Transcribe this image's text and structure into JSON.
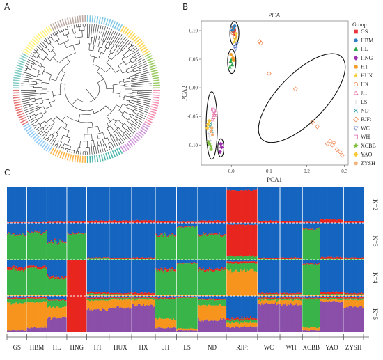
{
  "panels": {
    "a": "A",
    "b": "B",
    "c": "C"
  },
  "chart_data": [
    {
      "type": "tree",
      "panel": "A",
      "layout": "circular",
      "branch_color": "#222222",
      "tip_colors": [
        "#7ec8e3",
        "#ffd54f",
        "#9ccc65",
        "#f48fb1",
        "#ce93d8",
        "#4db6ac",
        "#ffb74d",
        "#90caf9",
        "#e57373",
        "#80cbc4",
        "#fff176",
        "#bcaaa4"
      ]
    },
    {
      "type": "scatter",
      "panel": "B",
      "title": "PCA",
      "xlabel": "PCA1",
      "ylabel": "PCA2",
      "xlim": [
        -0.08,
        0.31
      ],
      "ylim": [
        -0.135,
        0.117
      ],
      "x_ticks": [
        0.0,
        0.1,
        0.2,
        0.3
      ],
      "x_tick_labels": [
        "0.0",
        "0.1",
        "0.2",
        "0.3"
      ],
      "y_ticks": [
        -0.1,
        -0.05,
        0.0,
        0.05,
        0.1
      ],
      "y_tick_labels": [
        "-0.10",
        "-0.05",
        "0.00",
        "0.05",
        "0.10"
      ],
      "legend_title": "Group",
      "legend_position": "right",
      "groups": [
        {
          "name": "GS",
          "color": "#e8343a",
          "marker": "square",
          "points": [
            [
              0.006,
              0.098
            ],
            [
              0.008,
              0.101
            ],
            [
              0.01,
              0.094
            ]
          ]
        },
        {
          "name": "HBM",
          "color": "#2e7fc1",
          "marker": "circle",
          "points": [
            [
              0.004,
              0.106
            ],
            [
              0.007,
              0.103
            ],
            [
              0.002,
              0.1
            ],
            [
              0.009,
              0.108
            ]
          ]
        },
        {
          "name": "HL",
          "color": "#2aa84a",
          "marker": "triangle",
          "points": [
            [
              -0.002,
              0.046
            ],
            [
              0.002,
              0.04
            ],
            [
              -0.004,
              0.036
            ],
            [
              0.001,
              0.05
            ]
          ]
        },
        {
          "name": "HNG",
          "color": "#9b2fae",
          "marker": "diamond",
          "points": [
            [
              -0.03,
              -0.112
            ],
            [
              -0.028,
              -0.098
            ],
            [
              -0.026,
              -0.104
            ]
          ]
        },
        {
          "name": "HT",
          "color": "#f39c2a",
          "marker": "circle",
          "points": [
            [
              0.004,
              0.052
            ],
            [
              -0.001,
              0.058
            ],
            [
              0.006,
              0.048
            ]
          ]
        },
        {
          "name": "HUX",
          "color": "#f4d03f",
          "marker": "star",
          "points": [
            [
              0.01,
              0.085
            ],
            [
              0.013,
              0.09
            ],
            [
              0.008,
              0.08
            ],
            [
              0.012,
              0.094
            ]
          ]
        },
        {
          "name": "HX",
          "color": "#e07a3a",
          "marker": "circle-open",
          "points": [
            [
              0.006,
              0.105
            ],
            [
              0.003,
              0.096
            ],
            [
              0.009,
              0.089
            ]
          ]
        },
        {
          "name": "JH",
          "color": "#e87aa8",
          "marker": "triangle-open",
          "points": [
            [
              -0.048,
              -0.052
            ],
            [
              -0.045,
              -0.048
            ],
            [
              -0.05,
              -0.056
            ],
            [
              -0.046,
              -0.045
            ]
          ]
        },
        {
          "name": "LS",
          "color": "#9aa0a6",
          "marker": "plus",
          "points": [
            [
              -0.06,
              -0.08
            ],
            [
              -0.056,
              -0.092
            ],
            [
              -0.063,
              -0.072
            ],
            [
              -0.058,
              -0.085
            ]
          ]
        },
        {
          "name": "ND",
          "color": "#3aa3a8",
          "marker": "cross",
          "points": [
            [
              -0.055,
              -0.062
            ],
            [
              -0.052,
              -0.076
            ],
            [
              -0.057,
              -0.068
            ]
          ]
        },
        {
          "name": "RJFt",
          "color": "#f28e5a",
          "marker": "diamond-open",
          "points": [
            [
              0.075,
              0.081
            ],
            [
              0.078,
              0.078
            ],
            [
              0.1,
              0.025
            ],
            [
              0.17,
              -0.002
            ],
            [
              0.215,
              -0.06
            ],
            [
              0.228,
              -0.068
            ],
            [
              0.255,
              -0.098
            ],
            [
              0.262,
              -0.093
            ],
            [
              0.268,
              -0.1
            ],
            [
              0.272,
              -0.096
            ],
            [
              0.28,
              -0.108
            ],
            [
              0.288,
              -0.112
            ],
            [
              0.294,
              -0.118
            ]
          ]
        },
        {
          "name": "WC",
          "color": "#5b79c9",
          "marker": "triangle-down-open",
          "points": [
            [
              0.01,
              0.072
            ],
            [
              0.014,
              0.077
            ],
            [
              0.011,
              0.068
            ]
          ]
        },
        {
          "name": "WH",
          "color": "#e06fb0",
          "marker": "square-open",
          "points": [
            [
              -0.046,
              -0.04
            ],
            [
              -0.042,
              -0.044
            ],
            [
              -0.049,
              -0.038
            ]
          ]
        },
        {
          "name": "XCBB",
          "color": "#7fbf3f",
          "marker": "star",
          "points": [
            [
              -0.058,
              -0.098
            ],
            [
              -0.055,
              -0.102
            ],
            [
              -0.061,
              -0.095
            ],
            [
              -0.054,
              -0.108
            ]
          ]
        },
        {
          "name": "YAO",
          "color": "#f7c93b",
          "marker": "diamond",
          "points": [
            [
              -0.062,
              -0.064
            ],
            [
              -0.059,
              -0.058
            ],
            [
              -0.064,
              -0.07
            ]
          ]
        },
        {
          "name": "ZYSH",
          "color": "#f0b27a",
          "marker": "circle",
          "points": [
            [
              -0.052,
              -0.07
            ],
            [
              -0.05,
              -0.082
            ],
            [
              -0.054,
              -0.076
            ]
          ]
        }
      ],
      "ellipses": [
        {
          "cx": 0.008,
          "cy": 0.095,
          "rx": 0.012,
          "ry": 0.021,
          "angle": 0
        },
        {
          "cx": 0.001,
          "cy": 0.046,
          "rx": 0.011,
          "ry": 0.021,
          "angle": 0
        },
        {
          "cx": -0.052,
          "cy": -0.066,
          "rx": 0.015,
          "ry": 0.059,
          "angle": 0
        },
        {
          "cx": -0.028,
          "cy": -0.105,
          "rx": 0.008,
          "ry": 0.016,
          "angle": 0
        },
        {
          "cx": 0.187,
          "cy": -0.018,
          "rx": 0.152,
          "ry": 0.042,
          "angle": -46
        }
      ]
    },
    {
      "type": "stacked-bar",
      "panel": "C",
      "rows": [
        "K=2",
        "K=3",
        "K=4",
        "K=5"
      ],
      "groups": [
        "GS",
        "HBM",
        "HL",
        "HNG",
        "HT",
        "HUX",
        "HX",
        "JH",
        "LS",
        "ND",
        "RJFt",
        "WC",
        "WH",
        "XCBB",
        "YAO",
        "ZYSH"
      ],
      "group_sizes": [
        16,
        16,
        16,
        16,
        18,
        18,
        19,
        17,
        17,
        23,
        25,
        18,
        18,
        14,
        19,
        16
      ],
      "colors": {
        "blue": "#1565c0",
        "red": "#e8261f",
        "green": "#38b449",
        "orange": "#f7941d",
        "purple": "#8a4fa8"
      },
      "proportions": {
        "K=2": [
          {
            "blue": 0.98,
            "red": 0.02
          },
          {
            "blue": 0.98,
            "red": 0.02
          },
          {
            "blue": 0.97,
            "red": 0.03
          },
          {
            "blue": 0.96,
            "red": 0.04
          },
          {
            "blue": 0.94,
            "red": 0.06
          },
          {
            "blue": 0.94,
            "red": 0.06
          },
          {
            "blue": 0.93,
            "red": 0.07
          },
          {
            "blue": 0.95,
            "red": 0.05
          },
          {
            "blue": 0.97,
            "red": 0.03
          },
          {
            "blue": 0.94,
            "red": 0.06
          },
          {
            "blue": 0.1,
            "red": 0.9
          },
          {
            "blue": 0.94,
            "red": 0.06
          },
          {
            "blue": 0.95,
            "red": 0.05
          },
          {
            "blue": 0.97,
            "red": 0.03
          },
          {
            "blue": 0.91,
            "red": 0.09
          },
          {
            "blue": 0.95,
            "red": 0.05
          }
        ],
        "K=3": [
          {
            "blue": 0.3,
            "red": 0.02,
            "green": 0.68
          },
          {
            "blue": 0.25,
            "red": 0.02,
            "green": 0.73
          },
          {
            "blue": 0.5,
            "red": 0.03,
            "green": 0.47
          },
          {
            "blue": 0.28,
            "red": 0.02,
            "green": 0.7
          },
          {
            "blue": 0.94,
            "red": 0.03,
            "green": 0.03
          },
          {
            "blue": 0.95,
            "red": 0.03,
            "green": 0.02
          },
          {
            "blue": 0.94,
            "red": 0.04,
            "green": 0.02
          },
          {
            "blue": 0.32,
            "red": 0.03,
            "green": 0.65
          },
          {
            "blue": 0.1,
            "red": 0.02,
            "green": 0.88
          },
          {
            "blue": 0.3,
            "red": 0.03,
            "green": 0.67
          },
          {
            "blue": 0.05,
            "red": 0.85,
            "green": 0.1
          },
          {
            "blue": 0.95,
            "red": 0.03,
            "green": 0.02
          },
          {
            "blue": 0.94,
            "red": 0.04,
            "green": 0.02
          },
          {
            "blue": 0.15,
            "red": 0.02,
            "green": 0.83
          },
          {
            "blue": 0.93,
            "red": 0.05,
            "green": 0.02
          },
          {
            "blue": 0.94,
            "red": 0.04,
            "green": 0.02
          }
        ],
        "K=4": [
          {
            "blue": 0.2,
            "red": 0.08,
            "green": 0.7,
            "orange": 0.02
          },
          {
            "blue": 0.18,
            "red": 0.06,
            "green": 0.74,
            "orange": 0.02
          },
          {
            "blue": 0.45,
            "red": 0.05,
            "green": 0.48,
            "orange": 0.02
          },
          {
            "blue": 0.0,
            "red": 1.0,
            "green": 0.0,
            "orange": 0.0
          },
          {
            "blue": 0.9,
            "red": 0.04,
            "green": 0.03,
            "orange": 0.03
          },
          {
            "blue": 0.92,
            "red": 0.03,
            "green": 0.03,
            "orange": 0.02
          },
          {
            "blue": 0.92,
            "red": 0.04,
            "green": 0.02,
            "orange": 0.02
          },
          {
            "blue": 0.25,
            "red": 0.05,
            "green": 0.68,
            "orange": 0.02
          },
          {
            "blue": 0.08,
            "red": 0.02,
            "green": 0.88,
            "orange": 0.02
          },
          {
            "blue": 0.25,
            "red": 0.05,
            "green": 0.67,
            "orange": 0.03
          },
          {
            "blue": 0.05,
            "red": 0.05,
            "green": 0.2,
            "orange": 0.7
          },
          {
            "blue": 0.92,
            "red": 0.03,
            "green": 0.03,
            "orange": 0.02
          },
          {
            "blue": 0.92,
            "red": 0.03,
            "green": 0.03,
            "orange": 0.02
          },
          {
            "blue": 0.1,
            "red": 0.02,
            "green": 0.86,
            "orange": 0.02
          },
          {
            "blue": 0.9,
            "red": 0.05,
            "green": 0.03,
            "orange": 0.02
          },
          {
            "blue": 0.92,
            "red": 0.03,
            "green": 0.03,
            "orange": 0.02
          }
        ],
        "K=5": [
          {
            "blue": 0.05,
            "red": 0.03,
            "green": 0.12,
            "orange": 0.75,
            "purple": 0.05
          },
          {
            "blue": 0.04,
            "red": 0.03,
            "green": 0.1,
            "orange": 0.7,
            "purple": 0.13
          },
          {
            "blue": 0.1,
            "red": 0.02,
            "green": 0.18,
            "orange": 0.3,
            "purple": 0.4
          },
          {
            "blue": 0.0,
            "red": 1.0,
            "green": 0.0,
            "orange": 0.0,
            "purple": 0.0
          },
          {
            "blue": 0.05,
            "red": 0.03,
            "green": 0.05,
            "orange": 0.25,
            "purple": 0.62
          },
          {
            "blue": 0.04,
            "red": 0.02,
            "green": 0.04,
            "orange": 0.22,
            "purple": 0.68
          },
          {
            "blue": 0.04,
            "red": 0.02,
            "green": 0.04,
            "orange": 0.15,
            "purple": 0.75
          },
          {
            "blue": 0.05,
            "red": 0.03,
            "green": 0.55,
            "orange": 0.25,
            "purple": 0.12
          },
          {
            "blue": 0.03,
            "red": 0.02,
            "green": 0.85,
            "orange": 0.05,
            "purple": 0.05
          },
          {
            "blue": 0.08,
            "red": 0.03,
            "green": 0.15,
            "orange": 0.4,
            "purple": 0.34
          },
          {
            "blue": 0.6,
            "red": 0.05,
            "green": 0.08,
            "orange": 0.12,
            "purple": 0.15
          },
          {
            "blue": 0.05,
            "red": 0.03,
            "green": 0.04,
            "orange": 0.1,
            "purple": 0.78
          },
          {
            "blue": 0.04,
            "red": 0.03,
            "green": 0.04,
            "orange": 0.12,
            "purple": 0.77
          },
          {
            "blue": 0.05,
            "red": 0.02,
            "green": 0.8,
            "orange": 0.08,
            "purple": 0.05
          },
          {
            "blue": 0.03,
            "red": 0.03,
            "green": 0.04,
            "orange": 0.05,
            "purple": 0.85
          },
          {
            "blue": 0.04,
            "red": 0.03,
            "green": 0.04,
            "orange": 0.2,
            "purple": 0.69
          }
        ]
      }
    }
  ]
}
